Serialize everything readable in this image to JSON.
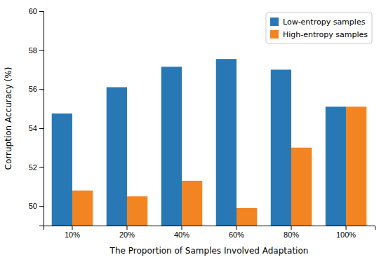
{
  "chart_data": {
    "type": "bar",
    "xlabel": "The Proportion of Samples Involved Adaptation",
    "ylabel": "Corruption Accuracy (%)",
    "categories": [
      "10%",
      "20%",
      "40%",
      "60%",
      "80%",
      "100%"
    ],
    "series": [
      {
        "name": "Low-entropy samples",
        "color": "#2878b5",
        "values": [
          54.75,
          56.1,
          57.15,
          57.55,
          57.0,
          55.1
        ]
      },
      {
        "name": "High-entropy samples",
        "color": "#f28522",
        "values": [
          50.8,
          50.5,
          51.3,
          49.9,
          53.0,
          55.1
        ]
      }
    ],
    "ylim": [
      49.0,
      60.0
    ],
    "yticks": [
      50,
      52,
      54,
      56,
      58,
      60
    ],
    "legend": "upper right",
    "grid": false
  }
}
